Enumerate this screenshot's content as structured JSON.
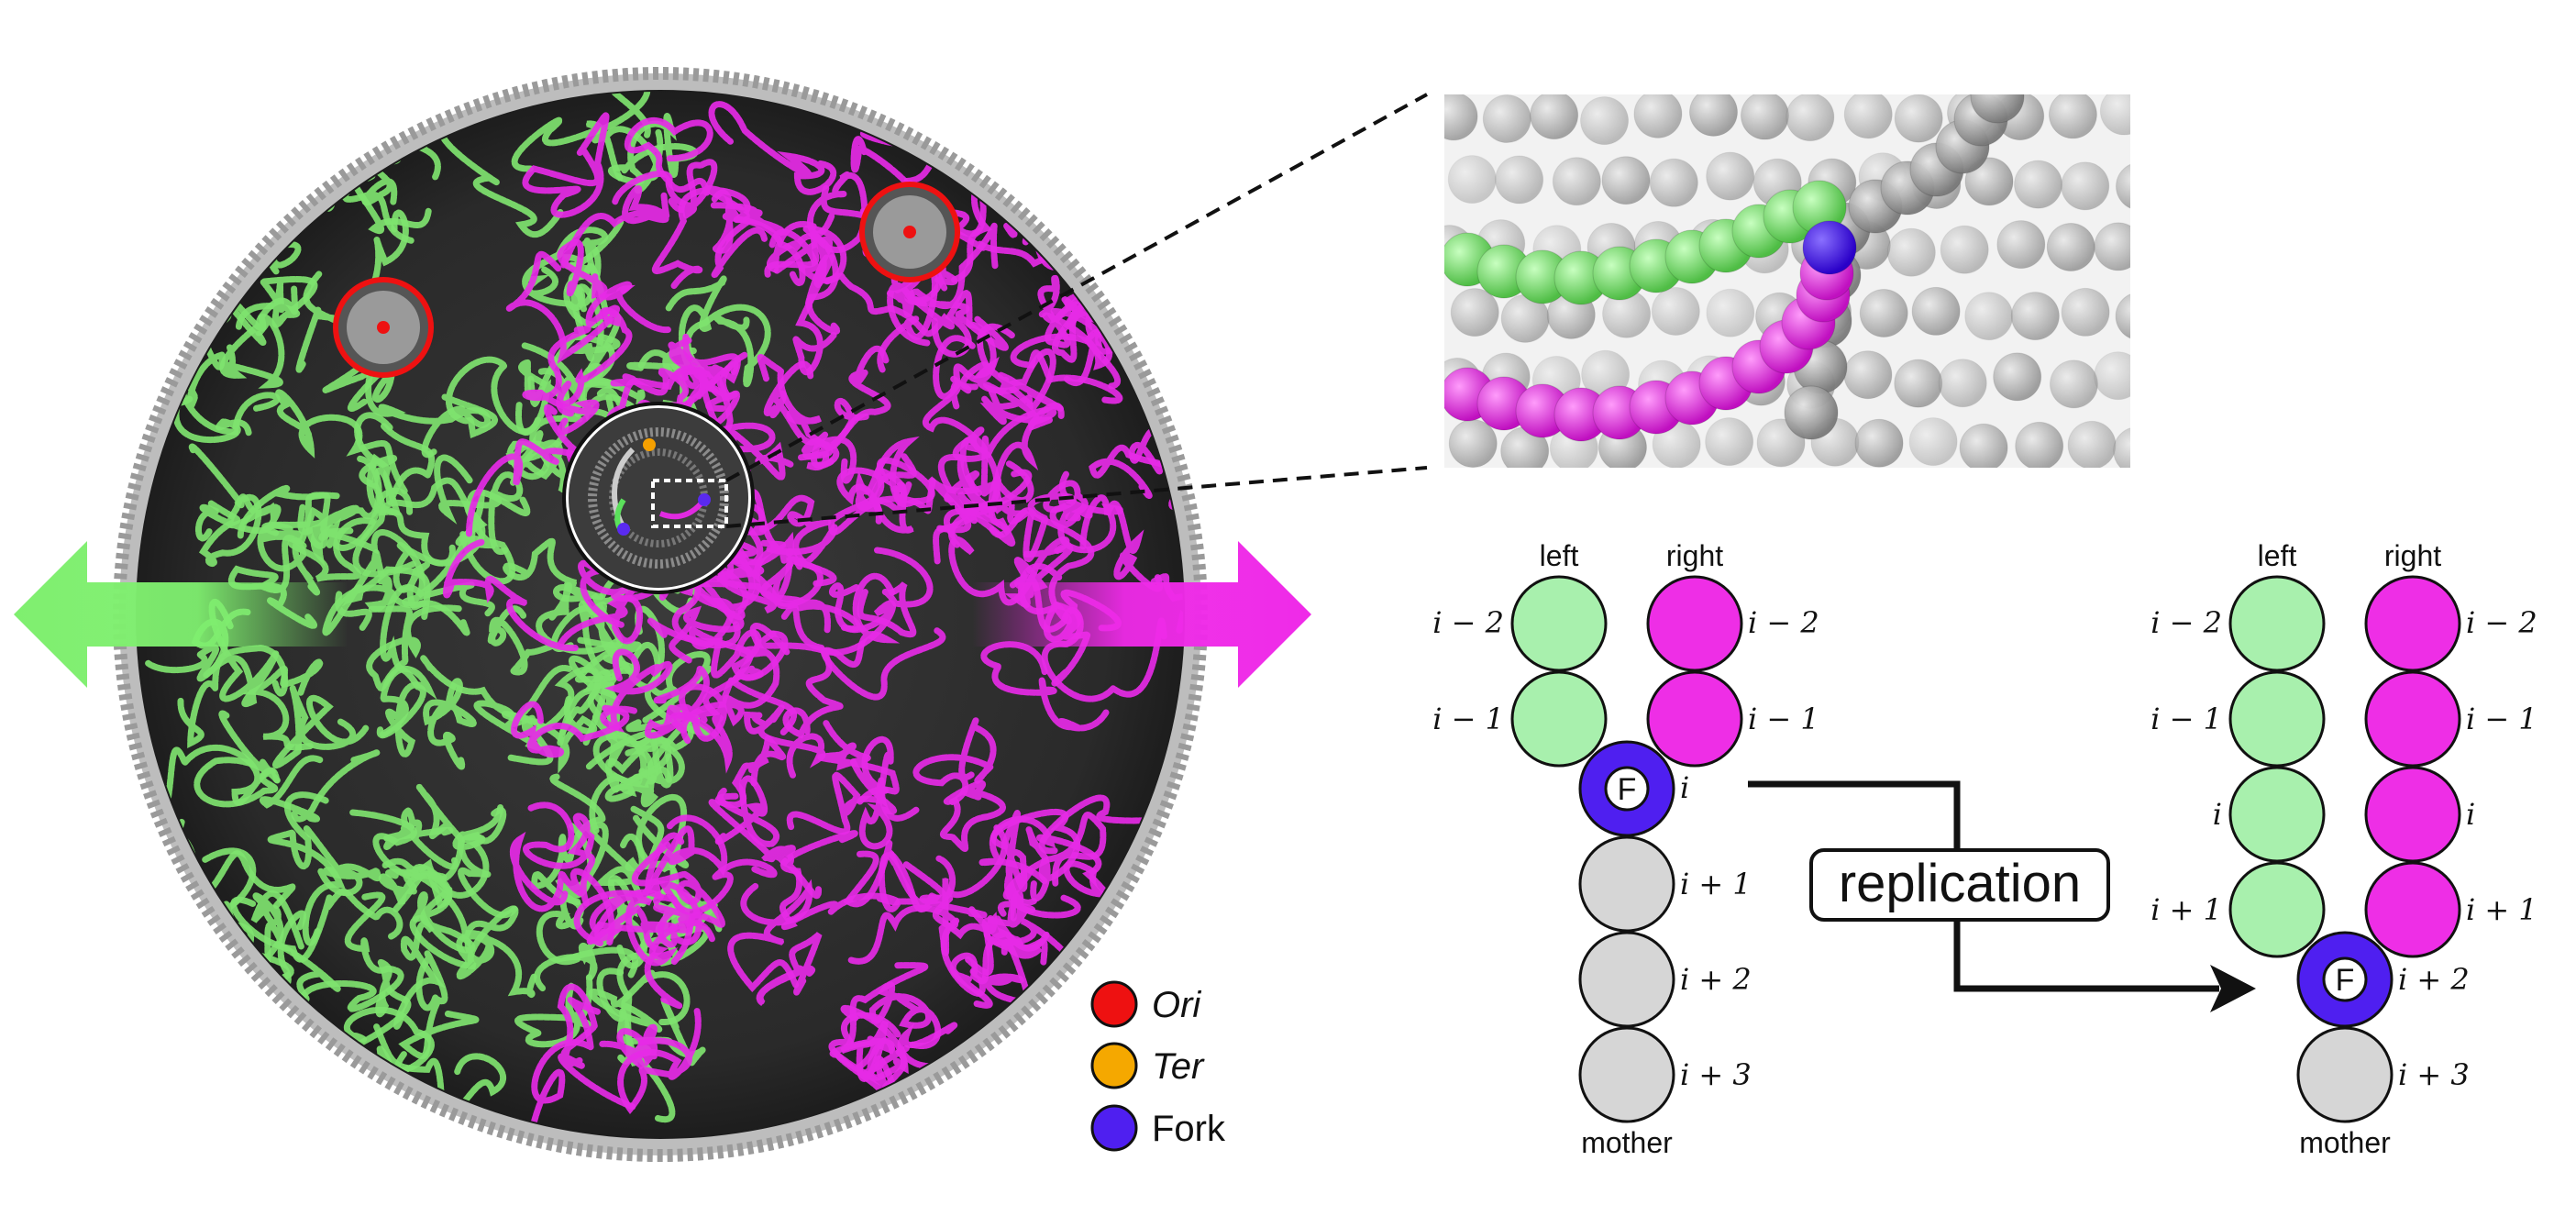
{
  "colors": {
    "left_strand": "#a8f0ad",
    "right_strand": "#ee2ee6",
    "mother_strand": "#d6d6d6",
    "fork": "#4f1ff0",
    "ori": "#ee1111",
    "ter": "#f5a800",
    "green_chromosome": "#7fe36f",
    "magenta_chromosome": "#e62ae6",
    "cell_wall": "#555555"
  },
  "legend": {
    "ori": "Ori",
    "ter": "Ter",
    "fork": "Fork"
  },
  "icons": {
    "left_arrow": "arrow-left-icon",
    "right_arrow": "arrow-right-icon"
  },
  "before": {
    "left_label": "left",
    "right_label": "right",
    "mother_label": "mother",
    "fork_label": "F",
    "index_left": [
      "i − 2",
      "i − 1"
    ],
    "index_right": [
      "i − 2",
      "i − 1"
    ],
    "fork_index": "i",
    "index_mother": [
      "i + 1",
      "i + 2",
      "i + 3"
    ]
  },
  "after": {
    "left_label": "left",
    "right_label": "right",
    "mother_label": "mother",
    "fork_label": "F",
    "index_left": [
      "i − 2",
      "i − 1",
      "i",
      "i + 1"
    ],
    "index_right": [
      "i − 2",
      "i − 1",
      "i",
      "i + 1"
    ],
    "fork_index": "i + 2",
    "index_mother": [
      "i + 3"
    ]
  },
  "process": {
    "label": "replication"
  }
}
